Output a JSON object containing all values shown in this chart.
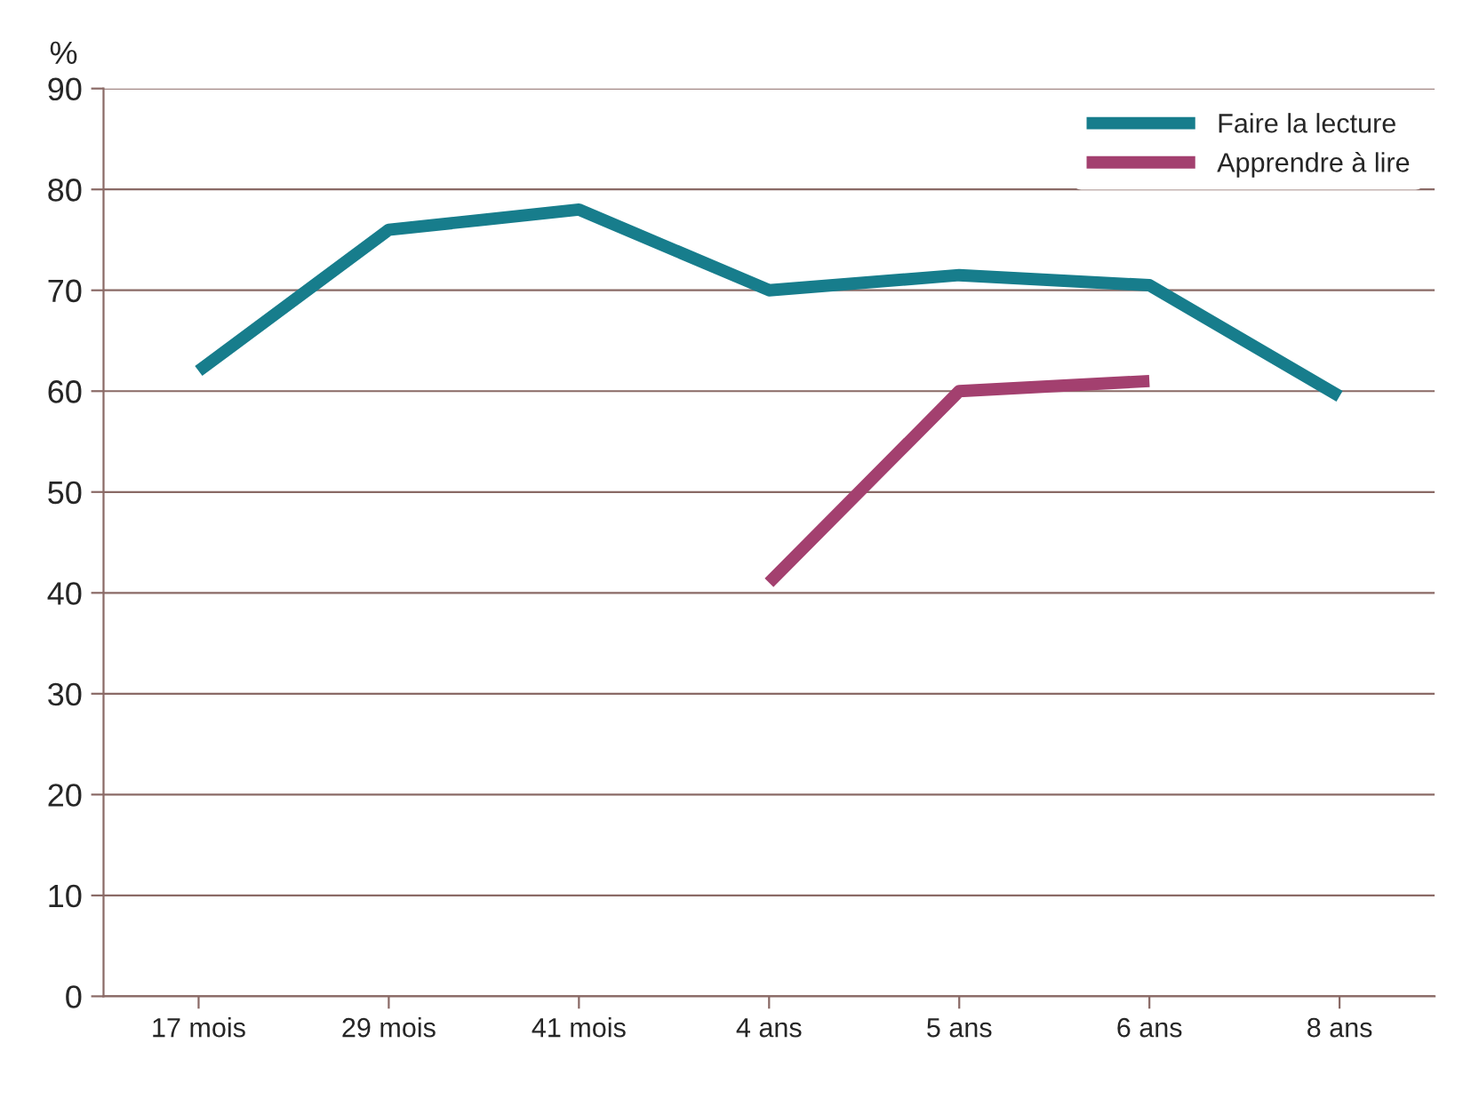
{
  "chart_data": {
    "type": "line",
    "ylabel": "%",
    "categories": [
      "17 mois",
      "29 mois",
      "41 mois",
      "4 ans",
      "5 ans",
      "6 ans",
      "8 ans"
    ],
    "series": [
      {
        "name": "Faire la lecture",
        "color": "#177d8c",
        "values": [
          62,
          76,
          78,
          70,
          71.5,
          70.5,
          59.5
        ]
      },
      {
        "name": "Apprendre à lire",
        "color": "#a3406f",
        "values": [
          null,
          null,
          null,
          41,
          60,
          61,
          null
        ]
      }
    ],
    "ylim": [
      0,
      90
    ],
    "yticks": [
      0,
      10,
      20,
      30,
      40,
      50,
      60,
      70,
      80,
      90
    ],
    "grid": "y",
    "legend": "top right",
    "marker": "none",
    "line_style": "solid"
  }
}
